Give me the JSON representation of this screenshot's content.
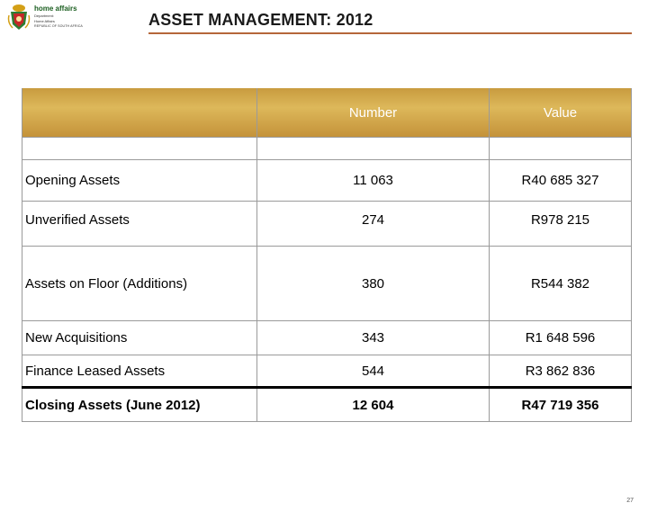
{
  "header": {
    "logo_main": "home affairs",
    "logo_line1": "Department:",
    "logo_line2": "Home Affairs",
    "logo_line3": "REPUBLIC OF SOUTH AFRICA",
    "title": "ASSET MANAGEMENT: 2012"
  },
  "table": {
    "columns": [
      "",
      "Number",
      "Value"
    ],
    "rows": [
      {
        "label": "Opening Assets",
        "number": "11 063",
        "value": "R40 685 327"
      },
      {
        "label": "Unverified Assets",
        "number": "274",
        "value": "R978 215"
      },
      {
        "label": "Assets on Floor (Additions)",
        "number": "380",
        "value": "R544 382"
      },
      {
        "label": "New Acquisitions",
        "number": "343",
        "value": "R1 648 596"
      },
      {
        "label": "Finance Leased Assets",
        "number": "544",
        "value": "R3 862 836"
      },
      {
        "label": "Closing Assets (June 2012)",
        "number": "12 604",
        "value": "R47 719 356"
      }
    ]
  },
  "footer": {
    "page_number": "27"
  },
  "colors": {
    "header_gold": "#c89b3f",
    "title_rule": "#b5673a"
  }
}
